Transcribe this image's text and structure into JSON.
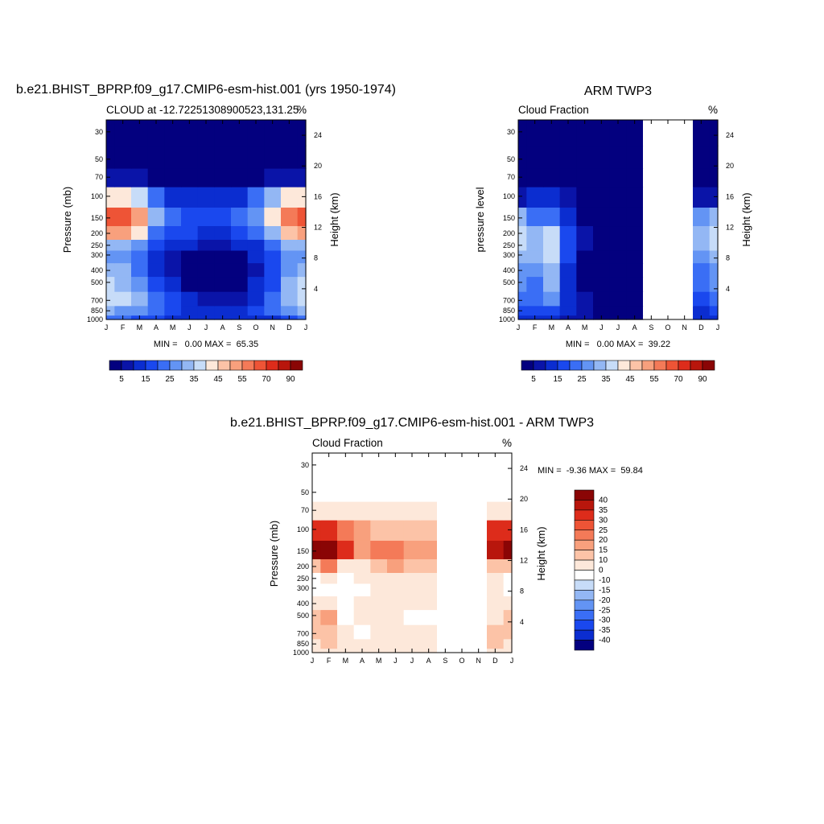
{
  "panels": {
    "model": {
      "title": "b.e21.BHIST_BPRP.f09_g17.CMIP6-esm-hist.001 (yrs 1950-1974)",
      "left_label": "CLOUD at -12.72251308900523,131.25",
      "right_label": "%",
      "ylabel_left": "Pressure (mb)",
      "ylabel_right": "Height (km)",
      "stats": "MIN =   0.00 MAX =  65.35"
    },
    "obs": {
      "title": "ARM TWP3",
      "left_label": "Cloud Fraction",
      "right_label": "%",
      "ylabel_left": "pressure level",
      "ylabel_right": "Height (km)",
      "stats": "MIN =   0.00 MAX =  39.22"
    },
    "diff": {
      "title": "b.e21.BHIST_BPRP.f09_g17.CMIP6-esm-hist.001 - ARM TWP3",
      "left_label": "Cloud Fraction",
      "right_label": "%",
      "ylabel_left": "Pressure (mb)",
      "ylabel_right": "Height (km)",
      "stats": "MIN =  -9.36 MAX =  59.84"
    }
  },
  "axes": {
    "months": [
      "J",
      "F",
      "M",
      "A",
      "M",
      "J",
      "J",
      "A",
      "S",
      "O",
      "N",
      "D",
      "J"
    ],
    "pressure_ticks": [
      "30",
      "50",
      "70",
      "100",
      "150",
      "200",
      "250",
      "300",
      "400",
      "500",
      "700",
      "850",
      "1000"
    ],
    "pressure_values": [
      30,
      50,
      70,
      100,
      150,
      200,
      250,
      300,
      400,
      500,
      700,
      850,
      1000
    ],
    "height_ticks": [
      "24",
      "20",
      "16",
      "12",
      "8",
      "4"
    ],
    "height_values": [
      24,
      20,
      16,
      12,
      8,
      4
    ]
  },
  "colorbars": {
    "horizontal_labels": [
      "5",
      "15",
      "25",
      "35",
      "45",
      "55",
      "70",
      "90"
    ],
    "horizontal_colors": [
      "#03007f",
      "#0a14a8",
      "#0b2dd0",
      "#1a48ee",
      "#3a6ef5",
      "#6394f4",
      "#93b7f4",
      "#c7dcf8",
      "#fde8da",
      "#fcc3a7",
      "#f8a07d",
      "#f47a58",
      "#ee5436",
      "#dd2c1b",
      "#b8160c",
      "#8a0505"
    ],
    "vertical_labels": [
      "40",
      "35",
      "30",
      "25",
      "20",
      "15",
      "10",
      "0",
      "-10",
      "-15",
      "-20",
      "-25",
      "-30",
      "-35",
      "-40"
    ],
    "vertical_colors": [
      "#8a0505",
      "#b8160c",
      "#dd2c1b",
      "#ee5436",
      "#f47a58",
      "#f8a07d",
      "#fcc3a7",
      "#fde8da",
      "#ffffff",
      "#c7dcf8",
      "#93b7f4",
      "#6394f4",
      "#3a6ef5",
      "#1a48ee",
      "#0b2dd0",
      "#03007f"
    ]
  },
  "chart_data": [
    {
      "type": "heatmap",
      "title": "b.e21.BHIST_BPRP.f09_g17.CMIP6-esm-hist.001 (yrs 1950-1974)",
      "xlabel": "",
      "ylabel": "Pressure (mb)",
      "x": [
        "J",
        "F",
        "M",
        "A",
        "M",
        "J",
        "J",
        "A",
        "S",
        "O",
        "N",
        "D",
        "J"
      ],
      "y_pressure_mb": [
        1000,
        850,
        700,
        500,
        400,
        300,
        250,
        200,
        150,
        100,
        70,
        50,
        30
      ],
      "values_note_units": "%",
      "values": [
        [
          22,
          20,
          18,
          15,
          12,
          10,
          10,
          10,
          11,
          12,
          14,
          18,
          22
        ],
        [
          30,
          28,
          25,
          20,
          15,
          12,
          10,
          10,
          12,
          15,
          20,
          26,
          30
        ],
        [
          38,
          35,
          30,
          22,
          16,
          10,
          5,
          5,
          8,
          14,
          22,
          32,
          38
        ],
        [
          36,
          34,
          28,
          18,
          10,
          4,
          2,
          2,
          4,
          10,
          18,
          30,
          36
        ],
        [
          30,
          30,
          24,
          14,
          8,
          2,
          1,
          1,
          2,
          8,
          16,
          28,
          30
        ],
        [
          28,
          28,
          22,
          14,
          8,
          2,
          1,
          1,
          2,
          10,
          18,
          28,
          28
        ],
        [
          34,
          34,
          28,
          18,
          14,
          10,
          8,
          8,
          10,
          14,
          22,
          32,
          34
        ],
        [
          50,
          52,
          40,
          24,
          18,
          16,
          14,
          14,
          16,
          22,
          34,
          48,
          50
        ],
        [
          62,
          65,
          52,
          30,
          20,
          18,
          16,
          16,
          20,
          28,
          44,
          58,
          62
        ],
        [
          40,
          42,
          36,
          22,
          14,
          12,
          10,
          10,
          14,
          22,
          34,
          40,
          40
        ],
        [
          8,
          8,
          6,
          4,
          3,
          3,
          3,
          3,
          3,
          4,
          6,
          8,
          8
        ],
        [
          1,
          1,
          1,
          1,
          1,
          1,
          1,
          1,
          1,
          1,
          1,
          1,
          1
        ],
        [
          0,
          0,
          0,
          0,
          0,
          0,
          0,
          0,
          0,
          0,
          0,
          0,
          0
        ]
      ],
      "min": 0.0,
      "max": 65.35
    },
    {
      "type": "heatmap",
      "title": "ARM TWP3",
      "xlabel": "",
      "ylabel": "pressure level",
      "x": [
        "J",
        "F",
        "M",
        "A",
        "M",
        "J",
        "J",
        "A",
        "S",
        "O",
        "N",
        "D",
        "J"
      ],
      "y_pressure_mb": [
        1000,
        850,
        700,
        500,
        400,
        300,
        250,
        200,
        150,
        100,
        70,
        50,
        30
      ],
      "missing_months": [
        "S",
        "O"
      ],
      "values": [
        [
          14,
          12,
          14,
          8,
          6,
          4,
          3,
          3,
          null,
          null,
          null,
          10,
          14
        ],
        [
          18,
          16,
          18,
          10,
          6,
          3,
          2,
          2,
          null,
          null,
          null,
          14,
          18
        ],
        [
          22,
          20,
          26,
          12,
          6,
          2,
          1,
          1,
          null,
          null,
          null,
          18,
          22
        ],
        [
          26,
          24,
          32,
          12,
          4,
          1,
          1,
          1,
          null,
          null,
          null,
          22,
          26
        ],
        [
          28,
          26,
          34,
          14,
          4,
          1,
          0,
          0,
          null,
          null,
          null,
          24,
          28
        ],
        [
          32,
          30,
          36,
          16,
          4,
          1,
          0,
          0,
          null,
          null,
          null,
          28,
          32
        ],
        [
          36,
          32,
          38,
          18,
          6,
          1,
          0,
          0,
          null,
          null,
          null,
          32,
          36
        ],
        [
          38,
          32,
          36,
          18,
          6,
          1,
          0,
          0,
          null,
          null,
          null,
          34,
          38
        ],
        [
          30,
          24,
          22,
          14,
          4,
          0,
          0,
          0,
          null,
          null,
          null,
          26,
          30
        ],
        [
          8,
          10,
          12,
          6,
          2,
          0,
          0,
          0,
          null,
          null,
          null,
          8,
          8
        ],
        [
          1,
          1,
          1,
          0,
          0,
          0,
          0,
          0,
          null,
          null,
          null,
          1,
          1
        ],
        [
          0,
          0,
          0,
          0,
          0,
          0,
          0,
          0,
          null,
          null,
          null,
          0,
          0
        ],
        [
          0,
          0,
          0,
          0,
          0,
          0,
          0,
          0,
          null,
          null,
          null,
          0,
          0
        ]
      ],
      "min": 0.0,
      "max": 39.22
    },
    {
      "type": "heatmap",
      "title": "b.e21.BHIST_BPRP.f09_g17.CMIP6-esm-hist.001 - ARM TWP3",
      "xlabel": "",
      "ylabel": "Pressure (mb)",
      "x": [
        "J",
        "F",
        "M",
        "A",
        "M",
        "J",
        "J",
        "A",
        "S",
        "O",
        "N",
        "D",
        "J"
      ],
      "y_pressure_mb": [
        1000,
        850,
        700,
        500,
        400,
        300,
        250,
        200,
        150,
        100,
        70,
        50,
        30
      ],
      "missing_months": [
        "S",
        "O"
      ],
      "values": [
        [
          6,
          6,
          3,
          6,
          5,
          5,
          6,
          6,
          null,
          null,
          null,
          6,
          6
        ],
        [
          8,
          10,
          6,
          8,
          8,
          8,
          8,
          6,
          null,
          null,
          null,
          10,
          8
        ],
        [
          14,
          14,
          4,
          -4,
          8,
          8,
          4,
          4,
          null,
          null,
          null,
          14,
          14
        ],
        [
          10,
          16,
          -4,
          6,
          6,
          8,
          -2,
          -4,
          null,
          null,
          null,
          8,
          10
        ],
        [
          2,
          4,
          -8,
          2,
          4,
          2,
          1,
          1,
          null,
          null,
          null,
          4,
          2
        ],
        [
          -4,
          -2,
          -6,
          -2,
          4,
          1,
          1,
          1,
          null,
          null,
          null,
          1,
          -4
        ],
        [
          -2,
          2,
          -8,
          1,
          8,
          8,
          8,
          8,
          null,
          null,
          null,
          1,
          -2
        ],
        [
          14,
          22,
          6,
          8,
          12,
          16,
          14,
          14,
          null,
          null,
          null,
          14,
          14
        ],
        [
          42,
          46,
          34,
          18,
          20,
          20,
          16,
          16,
          null,
          null,
          null,
          36,
          42
        ],
        [
          34,
          32,
          24,
          16,
          12,
          12,
          10,
          10,
          null,
          null,
          null,
          32,
          34
        ],
        [
          8,
          8,
          6,
          4,
          3,
          3,
          3,
          3,
          null,
          null,
          null,
          8,
          8
        ],
        [
          -1,
          -1,
          -1,
          -1,
          -1,
          -1,
          -1,
          -1,
          null,
          null,
          null,
          -1,
          -1
        ],
        [
          -1,
          -1,
          -1,
          -1,
          -1,
          -1,
          -1,
          -1,
          null,
          null,
          null,
          -1,
          -1
        ]
      ],
      "min": -9.36,
      "max": 59.84
    }
  ]
}
